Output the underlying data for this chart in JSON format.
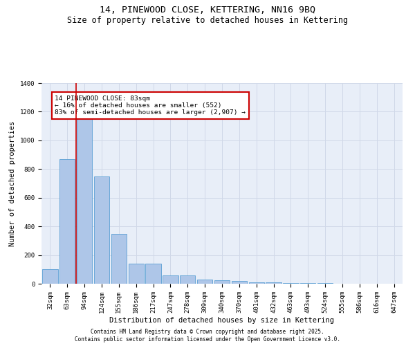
{
  "title": "14, PINEWOOD CLOSE, KETTERING, NN16 9BQ",
  "subtitle": "Size of property relative to detached houses in Kettering",
  "xlabel": "Distribution of detached houses by size in Kettering",
  "ylabel": "Number of detached properties",
  "categories": [
    "32sqm",
    "63sqm",
    "94sqm",
    "124sqm",
    "155sqm",
    "186sqm",
    "217sqm",
    "247sqm",
    "278sqm",
    "309sqm",
    "340sqm",
    "370sqm",
    "401sqm",
    "432sqm",
    "463sqm",
    "493sqm",
    "524sqm",
    "555sqm",
    "586sqm",
    "616sqm",
    "647sqm"
  ],
  "values": [
    100,
    870,
    1230,
    750,
    350,
    140,
    140,
    60,
    60,
    28,
    25,
    18,
    12,
    8,
    5,
    4,
    3,
    2,
    1,
    1,
    0
  ],
  "bar_color": "#aec6e8",
  "bar_edge_color": "#5a9fd4",
  "redline_x": 1.5,
  "annotation_text": "14 PINEWOOD CLOSE: 83sqm\n← 16% of detached houses are smaller (552)\n83% of semi-detached houses are larger (2,907) →",
  "annotation_box_color": "#ffffff",
  "annotation_box_edge": "#cc0000",
  "redline_color": "#cc0000",
  "grid_color": "#d0d8e8",
  "background_color": "#e8eef8",
  "ylim": [
    0,
    1400
  ],
  "yticks": [
    0,
    200,
    400,
    600,
    800,
    1000,
    1200,
    1400
  ],
  "footer1": "Contains HM Land Registry data © Crown copyright and database right 2025.",
  "footer2": "Contains public sector information licensed under the Open Government Licence v3.0.",
  "title_fontsize": 9.5,
  "subtitle_fontsize": 8.5,
  "tick_fontsize": 6.5,
  "ylabel_fontsize": 7.5,
  "xlabel_fontsize": 7.5,
  "annotation_fontsize": 6.8,
  "footer_fontsize": 5.5
}
